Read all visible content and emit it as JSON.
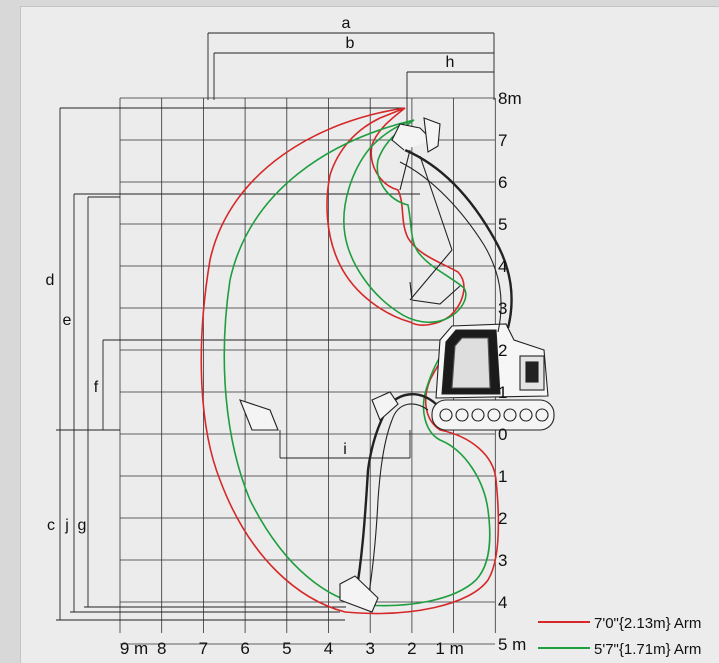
{
  "dimension_labels": {
    "a": "a",
    "b": "b",
    "h": "h",
    "d": "d",
    "e": "e",
    "f": "f",
    "i": "i",
    "c": "c",
    "j": "j",
    "g": "g"
  },
  "right_axis": {
    "ticks": [
      "8m",
      "7",
      "6",
      "5",
      "4",
      "3",
      "2",
      "1",
      "0",
      "1",
      "2",
      "3",
      "4",
      "5 m"
    ]
  },
  "bottom_axis": {
    "ticks": [
      "9 m",
      "8",
      "7",
      "6",
      "5",
      "4",
      "3",
      "2",
      "1 m"
    ]
  },
  "legend": {
    "items": [
      {
        "label": "7'0\"{2.13m} Arm",
        "color": "#d62828"
      },
      {
        "label": "5'7\"{1.71m} Arm",
        "color": "#1f9e3f"
      }
    ]
  },
  "colors": {
    "long_arm": "#d62828",
    "short_arm": "#1f9e3f",
    "grid": "#333333",
    "background": "#ececec"
  }
}
